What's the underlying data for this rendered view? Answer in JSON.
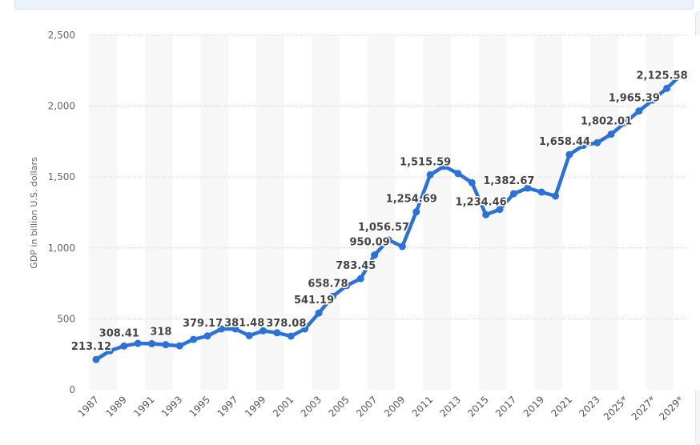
{
  "chart_data": {
    "type": "line",
    "title": "",
    "xlabel": "",
    "ylabel": "GDP in billion U.S. dollars",
    "ylim": [
      0,
      2500
    ],
    "yticks": [
      0,
      500,
      1000,
      1500,
      2000,
      2500
    ],
    "ytick_labels": [
      "0",
      "500",
      "1,000",
      "1,500",
      "2,000",
      "2,500"
    ],
    "grid": true,
    "color": "#2a72d9",
    "x": [
      1987,
      1988,
      1989,
      1990,
      1991,
      1992,
      1993,
      1994,
      1995,
      1996,
      1997,
      1998,
      1999,
      2000,
      2001,
      2002,
      2003,
      2004,
      2005,
      2006,
      2007,
      2008,
      2009,
      2010,
      2011,
      2012,
      2013,
      2014,
      2015,
      2016,
      2017,
      2018,
      2019,
      2020,
      2021,
      2022,
      2023,
      2024,
      2025,
      2026,
      2027,
      2028,
      2029
    ],
    "values": [
      213.12,
      275,
      308.41,
      327,
      325,
      318,
      310,
      355,
      379.17,
      429,
      429,
      381.48,
      416,
      402,
      378.08,
      429,
      541.19,
      658.78,
      735,
      783.45,
      950.09,
      1056.57,
      1010,
      1254.69,
      1515.59,
      1576,
      1525,
      1460,
      1234.46,
      1272,
      1382.67,
      1422,
      1394,
      1366,
      1658.44,
      1723,
      1742,
      1802.01,
      1883,
      1965.39,
      2043,
      2125.58,
      2218
    ],
    "xtick_labels": [
      "1987",
      "1989",
      "1991",
      "1993",
      "1995",
      "1997",
      "1999",
      "2001",
      "2003",
      "2005",
      "2007",
      "2009",
      "2011",
      "2013",
      "2015",
      "2017",
      "2019",
      "2021",
      "2023",
      "2025*",
      "2027*",
      "2029*"
    ],
    "data_labels": [
      {
        "x": 1987,
        "text": "213.12"
      },
      {
        "x": 1989,
        "text": "308.41"
      },
      {
        "x": 1992,
        "text": "318"
      },
      {
        "x": 1995,
        "text": "379.17"
      },
      {
        "x": 1998,
        "text": "381.48"
      },
      {
        "x": 2001,
        "text": "378.08"
      },
      {
        "x": 2003,
        "text": "541.19"
      },
      {
        "x": 2004,
        "text": "658.78"
      },
      {
        "x": 2006,
        "text": "783.45"
      },
      {
        "x": 2007,
        "text": "950.09"
      },
      {
        "x": 2008,
        "text": "1,056.57"
      },
      {
        "x": 2010,
        "text": "1,254.69"
      },
      {
        "x": 2011,
        "text": "1,515.59"
      },
      {
        "x": 2015,
        "text": "1,234.46"
      },
      {
        "x": 2017,
        "text": "1,382.67"
      },
      {
        "x": 2021,
        "text": "1,658.44"
      },
      {
        "x": 2024,
        "text": "1,802.01"
      },
      {
        "x": 2026,
        "text": "1,965.39"
      },
      {
        "x": 2028,
        "text": "2,125.58"
      }
    ]
  }
}
